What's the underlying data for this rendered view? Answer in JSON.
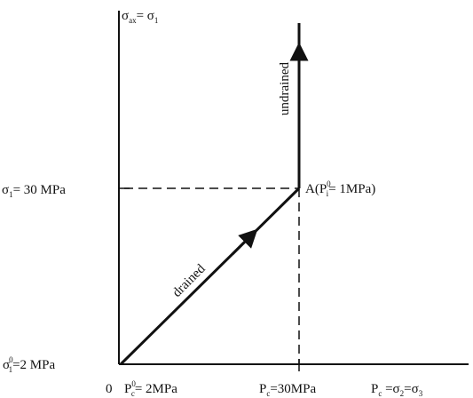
{
  "axes": {
    "y_axis_label": {
      "main": "σ",
      "sub": "ax",
      "rest": "= σ",
      "sub2": "1"
    },
    "x_axis_label": {
      "main": "P",
      "sub": "c",
      "rest": " =σ",
      "sub2": "2",
      "rest2": "=σ",
      "sub3": "3"
    },
    "origin": "0"
  },
  "ticks": {
    "y_top": {
      "main": "σ",
      "sub": "1",
      "rest": "= 30 MPa"
    },
    "y_bottom": {
      "main": "σ",
      "sup": "0",
      "sub": "1",
      "rest": "=2 MPa"
    },
    "x_left": {
      "main": "P",
      "sup": "0",
      "sub": "c",
      "rest": "= 2MPa"
    },
    "x_right": {
      "main": "P",
      "sub": "c",
      "rest": "=30MPa"
    }
  },
  "point_A": {
    "main": "A(P",
    "sup": "0",
    "sub": "i",
    "rest": "= 1MPa)"
  },
  "paths": {
    "drained": "drained",
    "undrained": "undrained"
  },
  "colors": {
    "line": "#111111",
    "background": "#ffffff"
  }
}
